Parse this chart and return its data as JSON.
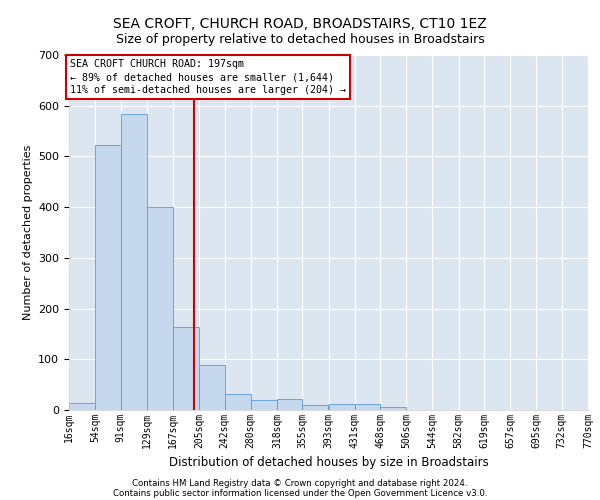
{
  "title": "SEA CROFT, CHURCH ROAD, BROADSTAIRS, CT10 1EZ",
  "subtitle": "Size of property relative to detached houses in Broadstairs",
  "xlabel": "Distribution of detached houses by size in Broadstairs",
  "ylabel": "Number of detached properties",
  "footnote1": "Contains HM Land Registry data © Crown copyright and database right 2024.",
  "footnote2": "Contains public sector information licensed under the Open Government Licence v3.0.",
  "bar_edges": [
    16,
    54,
    91,
    129,
    167,
    205,
    242,
    280,
    318,
    355,
    393,
    431,
    468,
    506,
    544,
    582,
    619,
    657,
    695,
    732,
    770
  ],
  "bar_heights": [
    13,
    522,
    583,
    401,
    163,
    88,
    32,
    20,
    22,
    10,
    11,
    11,
    5,
    0,
    0,
    0,
    0,
    0,
    0,
    0
  ],
  "bar_color": "#c5d8ed",
  "bar_edgecolor": "#5b9bd5",
  "property_line_x": 197,
  "property_line_color": "#cc0000",
  "annotation_text": "SEA CROFT CHURCH ROAD: 197sqm\n← 89% of detached houses are smaller (1,644)\n11% of semi-detached houses are larger (204) →",
  "annotation_box_edgecolor": "#cc0000",
  "annotation_box_facecolor": "#ffffff",
  "ylim": [
    0,
    700
  ],
  "yticks": [
    0,
    100,
    200,
    300,
    400,
    500,
    600,
    700
  ],
  "background_color": "#dce6f0",
  "plot_background": "#ffffff",
  "grid_color": "#ffffff",
  "title_fontsize": 10,
  "subtitle_fontsize": 9
}
